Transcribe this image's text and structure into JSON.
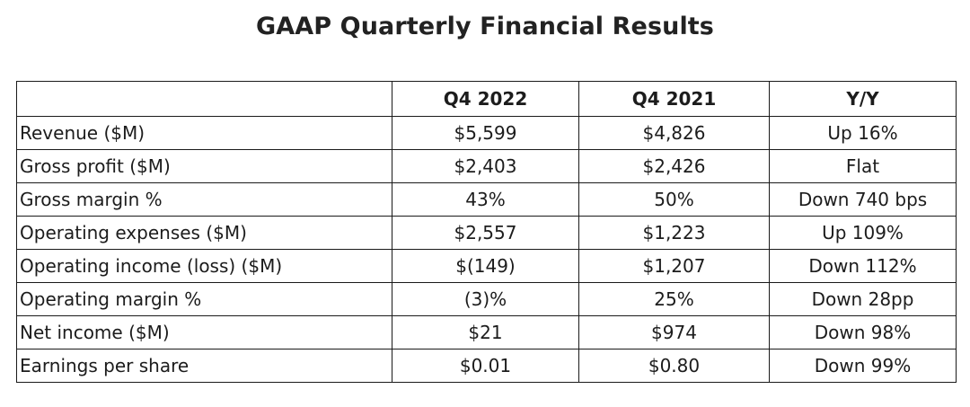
{
  "title": "GAAP Quarterly Financial Results",
  "table": {
    "headers": [
      "",
      "Q4 2022",
      "Q4 2021",
      "Y/Y"
    ],
    "rows": [
      [
        "Revenue ($M)",
        "$5,599",
        "$4,826",
        "Up 16%"
      ],
      [
        "Gross profit ($M)",
        "$2,403",
        "$2,426",
        "Flat"
      ],
      [
        "Gross margin %",
        "43%",
        "50%",
        "Down 740 bps"
      ],
      [
        "Operating expenses ($M)",
        "$2,557",
        "$1,223",
        "Up 109%"
      ],
      [
        "Operating income (loss) ($M)",
        "$(149)",
        "$1,207",
        "Down 112%"
      ],
      [
        "Operating margin %",
        "(3)%",
        "25%",
        "Down 28pp"
      ],
      [
        "Net income ($M)",
        "$21",
        "$974",
        "Down 98%"
      ],
      [
        "Earnings per share",
        "$0.01",
        "$0.80",
        "Down 99%"
      ]
    ]
  }
}
